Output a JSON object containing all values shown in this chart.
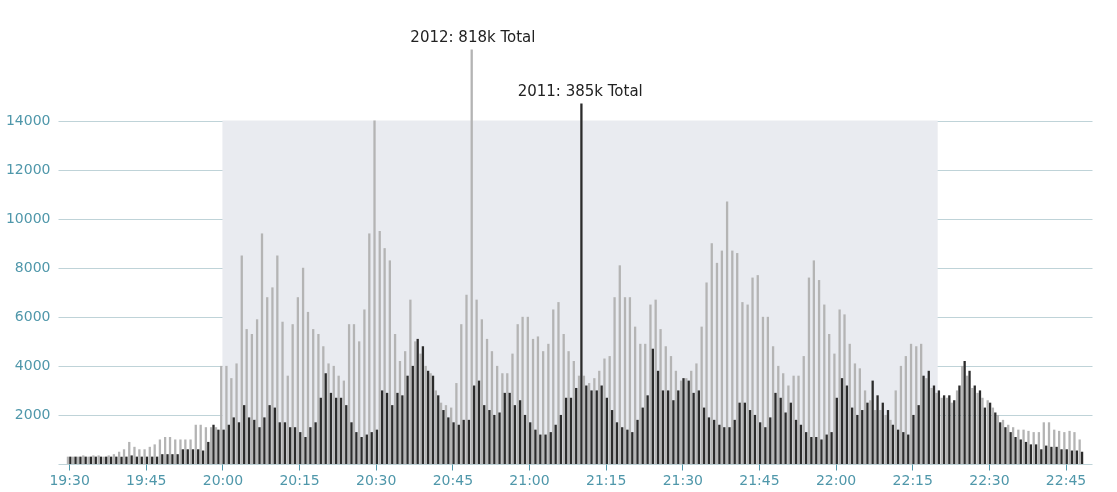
{
  "chart_data": {
    "type": "bar",
    "x": [
      19.5,
      19.517,
      19.533,
      19.55,
      19.567,
      19.583,
      19.6,
      19.617,
      19.633,
      19.65,
      19.667,
      19.683,
      19.7,
      19.717,
      19.733,
      19.75,
      19.767,
      19.783,
      19.8,
      19.817,
      19.833,
      19.85,
      19.867,
      19.883,
      19.9,
      19.917,
      19.933,
      19.95,
      19.967,
      19.983,
      20,
      20.017,
      20.033,
      20.05,
      20.067,
      20.083,
      20.1,
      20.117,
      20.133,
      20.15,
      20.167,
      20.183,
      20.2,
      20.217,
      20.233,
      20.25,
      20.267,
      20.283,
      20.3,
      20.317,
      20.333,
      20.35,
      20.367,
      20.383,
      20.4,
      20.417,
      20.433,
      20.45,
      20.467,
      20.483,
      20.5,
      20.517,
      20.533,
      20.55,
      20.567,
      20.583,
      20.6,
      20.617,
      20.633,
      20.65,
      20.667,
      20.683,
      20.7,
      20.717,
      20.733,
      20.75,
      20.767,
      20.783,
      20.8,
      20.817,
      20.833,
      20.85,
      20.867,
      20.883,
      20.9,
      20.917,
      20.933,
      20.95,
      20.967,
      20.983,
      21,
      21.017,
      21.033,
      21.05,
      21.067,
      21.083,
      21.1,
      21.117,
      21.133,
      21.15,
      21.167,
      21.183,
      21.2,
      21.217,
      21.233,
      21.25,
      21.267,
      21.283,
      21.3,
      21.317,
      21.333,
      21.35,
      21.367,
      21.383,
      21.4,
      21.417,
      21.433,
      21.45,
      21.467,
      21.483,
      21.5,
      21.517,
      21.533,
      21.55,
      21.567,
      21.583,
      21.6,
      21.617,
      21.633,
      21.65,
      21.667,
      21.683,
      21.7,
      21.717,
      21.733,
      21.75,
      21.767,
      21.783,
      21.8,
      21.817,
      21.833,
      21.85,
      21.867,
      21.883,
      21.9,
      21.917,
      21.933,
      21.95,
      21.967,
      21.983,
      22,
      22.017,
      22.033,
      22.05,
      22.067,
      22.083,
      22.1,
      22.117,
      22.133,
      22.15,
      22.167,
      22.183,
      22.2,
      22.217,
      22.233,
      22.25,
      22.267,
      22.283,
      22.3,
      22.317,
      22.333,
      22.35,
      22.367,
      22.383,
      22.4,
      22.417,
      22.433,
      22.45,
      22.467,
      22.483,
      22.5,
      22.517,
      22.533,
      22.55,
      22.567,
      22.583,
      22.6,
      22.617,
      22.633,
      22.65,
      22.667,
      22.683,
      22.7,
      22.717,
      22.733,
      22.75,
      22.767,
      22.783,
      22.8
    ],
    "series": [
      {
        "color": "#b4b4b4",
        "values": [
          300,
          300,
          300,
          350,
          300,
          350,
          350,
          300,
          350,
          400,
          500,
          600,
          900,
          700,
          600,
          600,
          700,
          800,
          1000,
          1100,
          1100,
          1000,
          1000,
          1000,
          1000,
          1600,
          1600,
          1500,
          1500,
          1500,
          4000,
          4000,
          3500,
          4100,
          8500,
          5500,
          5300,
          5900,
          9400,
          6800,
          7200,
          8500,
          5800,
          3600,
          5700,
          6800,
          8000,
          6200,
          5500,
          5300,
          4800,
          4100,
          4000,
          3600,
          3400,
          5700,
          5700,
          5000,
          6300,
          9400,
          14000,
          9500,
          8800,
          8300,
          5300,
          4200,
          4600,
          6700,
          5000,
          4500,
          4000,
          3700,
          3000,
          2500,
          2400,
          2300,
          3300,
          5700,
          6900,
          16900,
          6700,
          5900,
          5100,
          4600,
          4000,
          3700,
          3700,
          4500,
          5700,
          6000,
          6000,
          5100,
          5200,
          4600,
          4900,
          6300,
          6600,
          5300,
          4600,
          4200,
          3600,
          3600,
          3300,
          3500,
          3800,
          4300,
          4400,
          6800,
          8100,
          6800,
          6800,
          5600,
          4900,
          4900,
          6500,
          6700,
          5500,
          4800,
          4400,
          3800,
          3400,
          3500,
          3800,
          4100,
          5600,
          7400,
          9000,
          8200,
          8700,
          10700,
          8700,
          8600,
          6600,
          6500,
          7600,
          7700,
          6000,
          6000,
          4800,
          4000,
          3700,
          3200,
          3600,
          3600,
          4400,
          7600,
          8300,
          7500,
          6500,
          5300,
          4500,
          6300,
          6100,
          4900,
          4100,
          3900,
          3000,
          2600,
          2200,
          2200,
          2000,
          1800,
          3000,
          4000,
          4400,
          4900,
          4800,
          4900,
          3500,
          3100,
          2900,
          2700,
          2700,
          2500,
          3000,
          4000,
          3600,
          3100,
          2900,
          2700,
          2600,
          2300,
          2000,
          1800,
          1600,
          1500,
          1400,
          1400,
          1350,
          1300,
          1300,
          1700,
          1700,
          1400,
          1350,
          1300,
          1350,
          1300,
          1000
        ]
      },
      {
        "color": "#2b2b2b",
        "values": [
          300,
          300,
          300,
          300,
          300,
          300,
          300,
          300,
          300,
          300,
          300,
          300,
          350,
          300,
          300,
          300,
          300,
          300,
          400,
          400,
          400,
          400,
          600,
          600,
          600,
          600,
          550,
          900,
          1600,
          1400,
          1400,
          1600,
          1900,
          1700,
          2400,
          1900,
          1800,
          1500,
          1900,
          2400,
          2300,
          1700,
          1700,
          1500,
          1500,
          1300,
          1100,
          1500,
          1700,
          2700,
          3700,
          2900,
          2700,
          2700,
          2400,
          1700,
          1300,
          1100,
          1200,
          1300,
          1400,
          3000,
          2900,
          2400,
          2900,
          2800,
          3600,
          4000,
          5100,
          4800,
          3800,
          3600,
          2800,
          2200,
          1900,
          1700,
          1600,
          1800,
          1800,
          3200,
          3400,
          2400,
          2200,
          2000,
          2100,
          2900,
          2900,
          2400,
          2600,
          2000,
          1700,
          1400,
          1200,
          1200,
          1300,
          1600,
          2000,
          2700,
          2700,
          3100,
          14700,
          3200,
          3000,
          3000,
          3200,
          2700,
          2200,
          1700,
          1500,
          1400,
          1300,
          1800,
          2300,
          2800,
          4700,
          3800,
          3000,
          3000,
          2600,
          3000,
          3500,
          3400,
          2900,
          3000,
          2300,
          1900,
          1800,
          1600,
          1500,
          1500,
          1800,
          2500,
          2500,
          2200,
          2000,
          1700,
          1500,
          1900,
          2900,
          2700,
          2100,
          2500,
          1800,
          1600,
          1300,
          1100,
          1100,
          1000,
          1200,
          1300,
          2700,
          3500,
          3200,
          2300,
          2000,
          2200,
          2500,
          3400,
          2800,
          2500,
          2200,
          1600,
          1400,
          1300,
          1200,
          2000,
          2400,
          3600,
          3800,
          3200,
          3000,
          2800,
          2800,
          2600,
          3200,
          4200,
          3800,
          3200,
          3000,
          2300,
          2500,
          2100,
          1700,
          1500,
          1300,
          1100,
          1000,
          900,
          800,
          800,
          600,
          750,
          700,
          700,
          600,
          600,
          550,
          550,
          500
        ]
      }
    ],
    "xlim": [
      19.48,
      22.82
    ],
    "xticks": [
      {
        "value": 19.5,
        "label": "19:30"
      },
      {
        "value": 19.75,
        "label": "19:45"
      },
      {
        "value": 20,
        "label": "20:00"
      },
      {
        "value": 20.25,
        "label": "20:15"
      },
      {
        "value": 20.5,
        "label": "20:30"
      },
      {
        "value": 20.75,
        "label": "20:45"
      },
      {
        "value": 21,
        "label": "21:00"
      },
      {
        "value": 21.25,
        "label": "21:15"
      },
      {
        "value": 21.5,
        "label": "21:30"
      },
      {
        "value": 21.75,
        "label": "21:45"
      },
      {
        "value": 22,
        "label": "22:00"
      },
      {
        "value": 22.25,
        "label": "22:15"
      },
      {
        "value": 22.5,
        "label": "22:30"
      },
      {
        "value": 22.75,
        "label": "22:45"
      }
    ],
    "ylim": [
      0,
      17000
    ],
    "yticks": [
      {
        "value": 0,
        "label": null
      },
      2000,
      4000,
      6000,
      8000,
      10000,
      12000,
      14000
    ],
    "grid": "y",
    "bands": [
      {
        "axis": "x",
        "from": 20,
        "to": 22.333,
        "color": "#e9ebf0"
      }
    ],
    "annotations": [
      {
        "text": "2012: 818k Total",
        "x": 20.817,
        "y": 16900
      },
      {
        "text": "2011: 385k Total",
        "x": 21.167,
        "y": 14700
      }
    ]
  }
}
